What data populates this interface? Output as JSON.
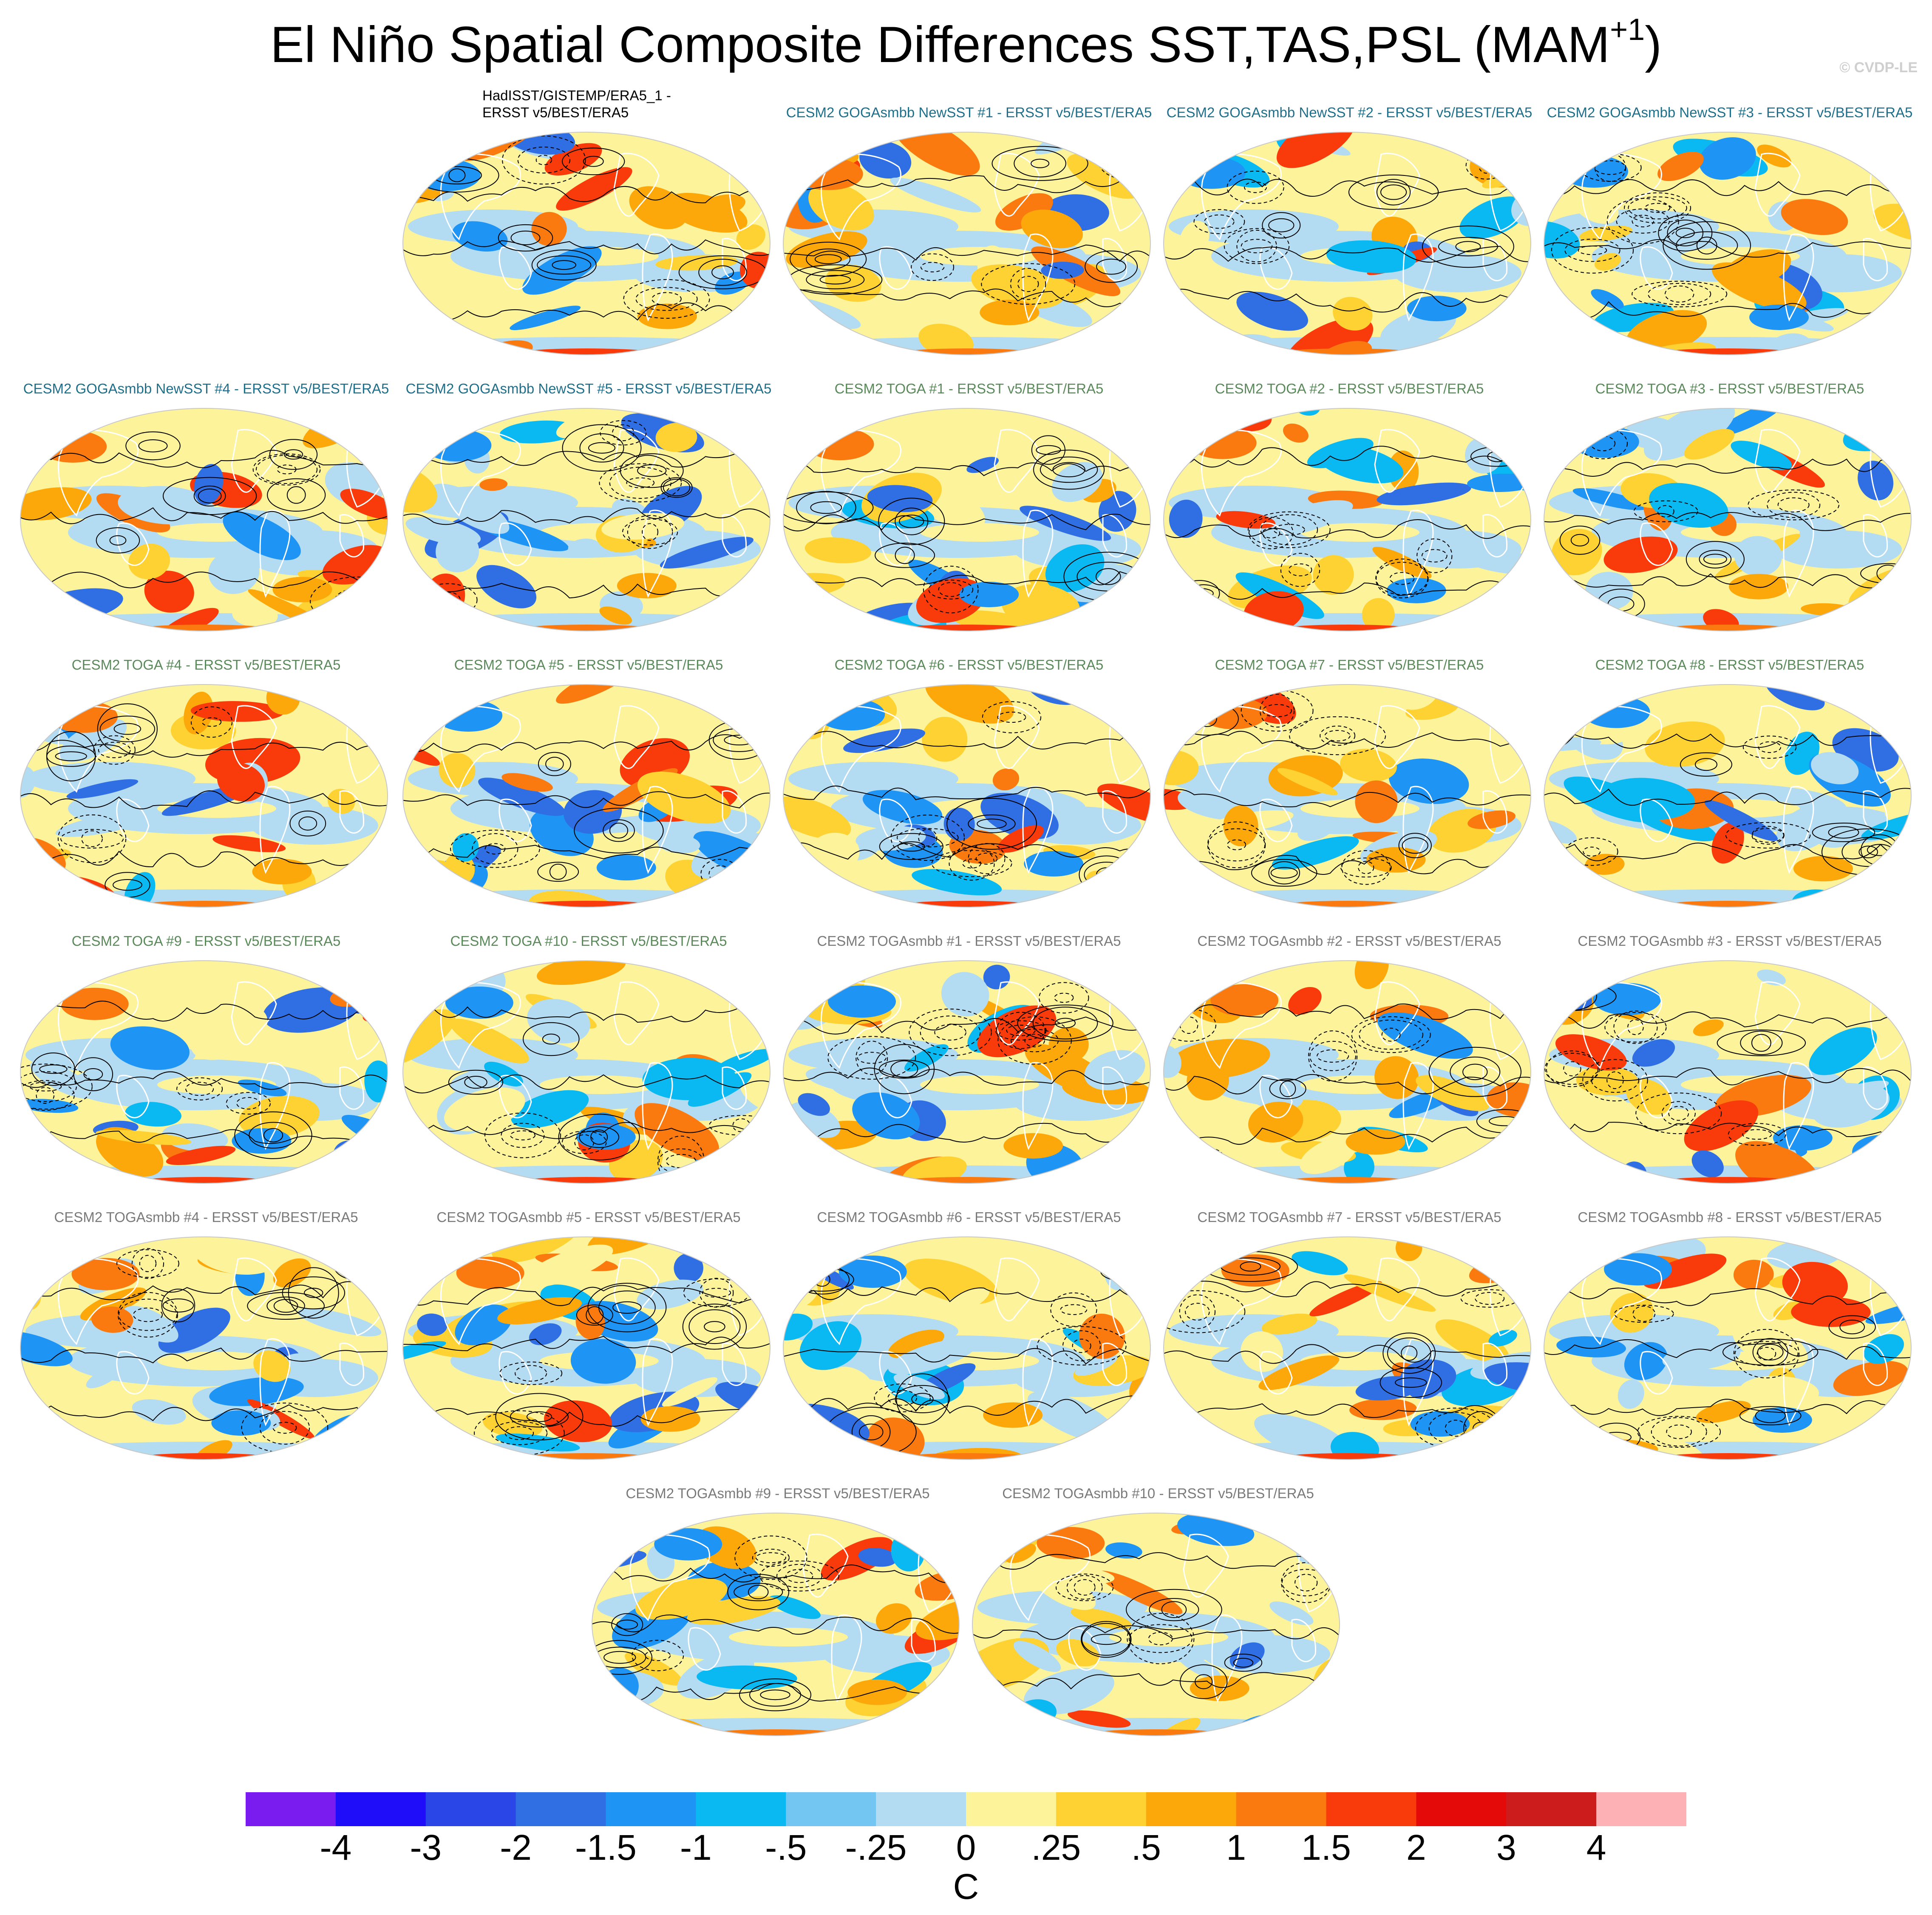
{
  "figure": {
    "title_main": "El Niño Spatial Composite Differences SST,TAS,PSL (MAM",
    "title_sup": "+1",
    "title_end": ")",
    "credit": "© CVDP-LE"
  },
  "colors": {
    "goga_title": "#1f6f8b",
    "toga_title": "#5a8a5a",
    "togasmbb_title": "#7a7a7a",
    "obs_title": "#000000",
    "land_outline": "#ffffff",
    "contour": "#000000"
  },
  "panels": [
    {
      "id": "obs",
      "title": "HadISST/GISTEMP/ERA5_1 -\nERSST v5/BEST/ERA5",
      "group": "obs"
    },
    {
      "id": "goga1",
      "title": "CESM2 GOGAsmbb NewSST #1 - ERSST v5/BEST/ERA5",
      "group": "goga"
    },
    {
      "id": "goga2",
      "title": "CESM2 GOGAsmbb NewSST #2 - ERSST v5/BEST/ERA5",
      "group": "goga"
    },
    {
      "id": "goga3",
      "title": "CESM2 GOGAsmbb NewSST #3 - ERSST v5/BEST/ERA5",
      "group": "goga"
    },
    {
      "id": "goga4",
      "title": "CESM2 GOGAsmbb NewSST #4 - ERSST v5/BEST/ERA5",
      "group": "goga"
    },
    {
      "id": "goga5",
      "title": "CESM2 GOGAsmbb NewSST #5 - ERSST v5/BEST/ERA5",
      "group": "goga"
    },
    {
      "id": "toga1",
      "title": "CESM2 TOGA #1 - ERSST v5/BEST/ERA5",
      "group": "toga"
    },
    {
      "id": "toga2",
      "title": "CESM2 TOGA #2 - ERSST v5/BEST/ERA5",
      "group": "toga"
    },
    {
      "id": "toga3",
      "title": "CESM2 TOGA #3 - ERSST v5/BEST/ERA5",
      "group": "toga"
    },
    {
      "id": "toga4",
      "title": "CESM2 TOGA #4 - ERSST v5/BEST/ERA5",
      "group": "toga"
    },
    {
      "id": "toga5",
      "title": "CESM2 TOGA #5 - ERSST v5/BEST/ERA5",
      "group": "toga"
    },
    {
      "id": "toga6",
      "title": "CESM2 TOGA #6 - ERSST v5/BEST/ERA5",
      "group": "toga"
    },
    {
      "id": "toga7",
      "title": "CESM2 TOGA #7 - ERSST v5/BEST/ERA5",
      "group": "toga"
    },
    {
      "id": "toga8",
      "title": "CESM2 TOGA #8 - ERSST v5/BEST/ERA5",
      "group": "toga"
    },
    {
      "id": "toga9",
      "title": "CESM2 TOGA #9 - ERSST v5/BEST/ERA5",
      "group": "toga"
    },
    {
      "id": "toga10",
      "title": "CESM2 TOGA #10 - ERSST v5/BEST/ERA5",
      "group": "toga"
    },
    {
      "id": "togas1",
      "title": "CESM2 TOGAsmbb #1 - ERSST v5/BEST/ERA5",
      "group": "togasmbb"
    },
    {
      "id": "togas2",
      "title": "CESM2 TOGAsmbb #2 - ERSST v5/BEST/ERA5",
      "group": "togasmbb"
    },
    {
      "id": "togas3",
      "title": "CESM2 TOGAsmbb #3 - ERSST v5/BEST/ERA5",
      "group": "togasmbb"
    },
    {
      "id": "togas4",
      "title": "CESM2 TOGAsmbb #4 - ERSST v5/BEST/ERA5",
      "group": "togasmbb"
    },
    {
      "id": "togas5",
      "title": "CESM2 TOGAsmbb #5 - ERSST v5/BEST/ERA5",
      "group": "togasmbb"
    },
    {
      "id": "togas6",
      "title": "CESM2 TOGAsmbb #6 - ERSST v5/BEST/ERA5",
      "group": "togasmbb"
    },
    {
      "id": "togas7",
      "title": "CESM2 TOGAsmbb #7 - ERSST v5/BEST/ERA5",
      "group": "togasmbb"
    },
    {
      "id": "togas8",
      "title": "CESM2 TOGAsmbb #8 - ERSST v5/BEST/ERA5",
      "group": "togasmbb"
    },
    {
      "id": "togas9",
      "title": "CESM2 TOGAsmbb #9 - ERSST v5/BEST/ERA5",
      "group": "togasmbb"
    },
    {
      "id": "togas10",
      "title": "CESM2 TOGAsmbb #10 - ERSST v5/BEST/ERA5",
      "group": "togasmbb"
    }
  ],
  "colorbar": {
    "units": "C",
    "labels": [
      "-4",
      "-3",
      "-2",
      "-1.5",
      "-1",
      "-.5",
      "-.25",
      "0",
      ".25",
      ".5",
      "1",
      "1.5",
      "2",
      "3",
      "4"
    ],
    "colors": [
      "#7a1cf0",
      "#1f0dfa",
      "#2a46e6",
      "#2f6fe3",
      "#1e94f5",
      "#0ab8f2",
      "#72c6f1",
      "#b3dcf3",
      "#fcf39a",
      "#fed232",
      "#fda80a",
      "#fa7a10",
      "#f93a0a",
      "#e50a0a",
      "#cc1c1c",
      "#fdb1b4"
    ]
  }
}
